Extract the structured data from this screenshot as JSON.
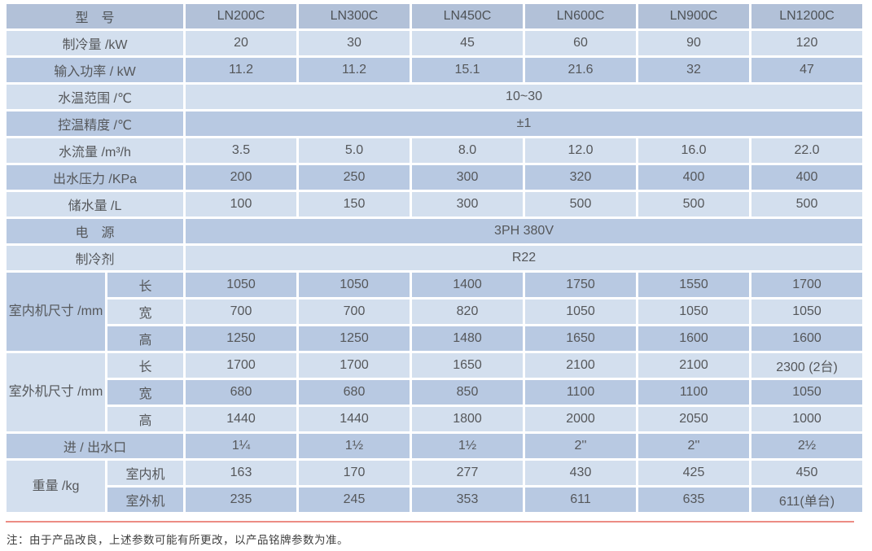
{
  "colors": {
    "header_bg": "#b2c1d8",
    "row_dark": "#b8c9e2",
    "row_light": "#d3dfee",
    "text": "#55575a",
    "rule_red": "#ec8d84"
  },
  "table": {
    "header": {
      "label": "型　号",
      "models": [
        "LN200C",
        "LN300C",
        "LN450C",
        "LN600C",
        "LN900C",
        "LN1200C"
      ]
    },
    "rows": [
      {
        "kind": "data",
        "shade": "light",
        "label": "制冷量 /kW",
        "values": [
          "20",
          "30",
          "45",
          "60",
          "90",
          "120"
        ]
      },
      {
        "kind": "data",
        "shade": "dark",
        "label": "输入功率 / kW",
        "values": [
          "11.2",
          "11.2",
          "15.1",
          "21.6",
          "32",
          "47"
        ]
      },
      {
        "kind": "span",
        "shade": "light",
        "label": "水温范围 /℃",
        "value": "10~30"
      },
      {
        "kind": "span",
        "shade": "dark",
        "label": "控温精度 /℃",
        "value": "±1"
      },
      {
        "kind": "data",
        "shade": "light",
        "label": "水流量 /m³/h",
        "values": [
          "3.5",
          "5.0",
          "8.0",
          "12.0",
          "16.0",
          "22.0"
        ]
      },
      {
        "kind": "data",
        "shade": "dark",
        "label": "出水压力 /KPa",
        "values": [
          "200",
          "250",
          "300",
          "320",
          "400",
          "400"
        ]
      },
      {
        "kind": "data",
        "shade": "light",
        "label": "储水量 /L",
        "values": [
          "100",
          "150",
          "300",
          "500",
          "500",
          "500"
        ]
      },
      {
        "kind": "span",
        "shade": "dark",
        "label": "电　源",
        "value": "3PH 380V"
      },
      {
        "kind": "span",
        "shade": "light",
        "label": "制冷剂",
        "value": "R22"
      },
      {
        "kind": "group",
        "shade": "dark",
        "label": "室内机尺寸\n/mm",
        "rows": [
          {
            "sub": "长",
            "shade": "dark",
            "values": [
              "1050",
              "1050",
              "1400",
              "1750",
              "1550",
              "1700"
            ]
          },
          {
            "sub": "宽",
            "shade": "light",
            "values": [
              "700",
              "700",
              "820",
              "1050",
              "1050",
              "1050"
            ]
          },
          {
            "sub": "高",
            "shade": "dark",
            "values": [
              "1250",
              "1250",
              "1480",
              "1650",
              "1600",
              "1600"
            ]
          }
        ]
      },
      {
        "kind": "group",
        "shade": "light",
        "label": "室外机尺寸\n/mm",
        "rows": [
          {
            "sub": "长",
            "shade": "light",
            "values": [
              "1700",
              "1700",
              "1650",
              "2100",
              "2100",
              "2300 (2台)"
            ]
          },
          {
            "sub": "宽",
            "shade": "dark",
            "values": [
              "680",
              "680",
              "850",
              "1100",
              "1100",
              "1050"
            ]
          },
          {
            "sub": "高",
            "shade": "light",
            "values": [
              "1440",
              "1440",
              "1800",
              "2000",
              "2050",
              "1000"
            ]
          }
        ]
      },
      {
        "kind": "data",
        "shade": "dark",
        "label": "进 / 出水口",
        "values": [
          "1¼",
          "1½",
          "1½",
          "2''",
          "2''",
          "2½"
        ]
      },
      {
        "kind": "group",
        "shade": "light",
        "label": "重量 /kg",
        "rows": [
          {
            "sub": "室内机",
            "shade": "light",
            "values": [
              "163",
              "170",
              "277",
              "430",
              "425",
              "450"
            ]
          },
          {
            "sub": "室外机",
            "shade": "dark",
            "values": [
              "235",
              "245",
              "353",
              "611",
              "635",
              "611(单台)"
            ]
          }
        ]
      }
    ]
  },
  "note": "注：由于产品改良，上述参数可能有所更改，以产品铭牌参数为准。"
}
